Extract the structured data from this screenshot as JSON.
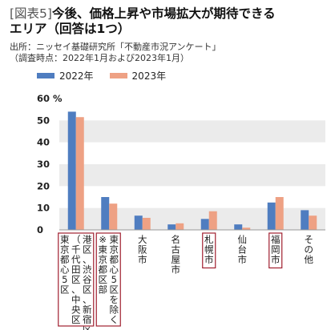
{
  "header": {
    "tag": "[図表5]",
    "title_line1": "今後、価格上昇や市場拡大が期待できる",
    "title_line2": "エリア（回答は1つ）",
    "source": "出所：ニッセイ基礎研究所「不動産市況アンケート」",
    "period": "（調査時点：2022年1月および2023年1月）"
  },
  "colors": {
    "s2022": "#4f7dc0",
    "s2023": "#eea184",
    "grid": "#ebebeb",
    "box": "#a02030"
  },
  "chart_data": {
    "type": "bar",
    "categories": [
      "東京都心5区",
      "東京都区部",
      "大阪市",
      "名古屋市",
      "札幌市",
      "仙台市",
      "福岡市",
      "その他"
    ],
    "category_notes": [
      "（千代田区、中央区、港区、渋谷区、新宿区）",
      "※東京都心5区を除く",
      "",
      "",
      "",
      "",
      "",
      ""
    ],
    "boxed": [
      true,
      true,
      false,
      false,
      true,
      false,
      true,
      false
    ],
    "series": [
      {
        "name": "2022年",
        "values": [
          54,
          15,
          6.5,
          2.5,
          5,
          2.5,
          12.5,
          9
        ]
      },
      {
        "name": "2023年",
        "values": [
          51.5,
          12,
          5.5,
          3,
          8.5,
          1,
          15,
          6.5
        ]
      }
    ],
    "ylim": [
      0,
      60
    ],
    "yticks": [
      0,
      10,
      20,
      30,
      40,
      50
    ],
    "ylabel_top": "60 %",
    "grid": true,
    "legend": "top-left"
  }
}
